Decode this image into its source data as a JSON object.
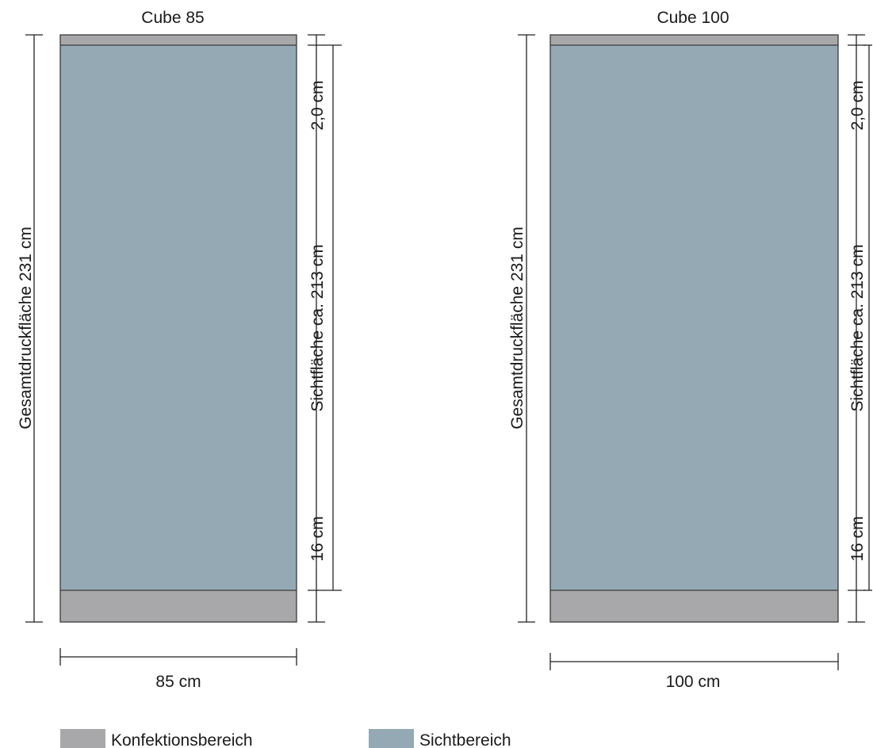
{
  "colors": {
    "konfektion": "#a8a8ab",
    "sicht": "#94a9b3",
    "outline": "#3a3a3a"
  },
  "panels": [
    {
      "id": "cube85",
      "title": "Cube 85",
      "width_label": "85 cm",
      "total_label": "Gesamtdruckfläche 231 cm",
      "visible_label": "Sichtfläche ca. 213 cm",
      "top_margin_label": "2,0 cm",
      "bottom_margin_label": "16 cm"
    },
    {
      "id": "cube100",
      "title": "Cube 100",
      "width_label": "100 cm",
      "total_label": "Gesamtdruckfläche 231 cm",
      "visible_label": "Sichtfläche ca. 213 cm",
      "top_margin_label": "2,0 cm",
      "bottom_margin_label": "16 cm"
    }
  ],
  "legend": [
    {
      "label": "Konfektionsbereich",
      "color_key": "konfektion"
    },
    {
      "label": "Sichtbereich",
      "color_key": "sicht"
    }
  ]
}
